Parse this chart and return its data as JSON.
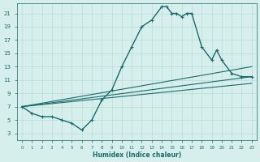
{
  "xlabel": "Humidex (Indice chaleur)",
  "bg_color": "#d6efec",
  "line_color": "#1a6b6b",
  "grid_color": "#b8dcd8",
  "xlim": [
    -0.5,
    23.5
  ],
  "ylim": [
    2,
    22.5
  ],
  "xticks": [
    0,
    1,
    2,
    3,
    4,
    5,
    6,
    7,
    8,
    9,
    10,
    11,
    12,
    13,
    14,
    15,
    16,
    17,
    18,
    19,
    20,
    21,
    22,
    23
  ],
  "yticks": [
    3,
    5,
    7,
    9,
    11,
    13,
    15,
    17,
    19,
    21
  ],
  "main_curve": [
    [
      0,
      7
    ],
    [
      1,
      6
    ],
    [
      2,
      5.5
    ],
    [
      3,
      5.5
    ],
    [
      4,
      5
    ],
    [
      5,
      4.5
    ],
    [
      6,
      3.5
    ],
    [
      7,
      5
    ],
    [
      8,
      8
    ],
    [
      9,
      9.5
    ],
    [
      10,
      13
    ],
    [
      11,
      16
    ],
    [
      12,
      19
    ],
    [
      13,
      20
    ],
    [
      14,
      22
    ],
    [
      14.5,
      22
    ],
    [
      15,
      21
    ],
    [
      15.5,
      21
    ],
    [
      16,
      20.5
    ],
    [
      16.5,
      21
    ],
    [
      17,
      21
    ],
    [
      18,
      16
    ],
    [
      19,
      14
    ],
    [
      19.5,
      15.5
    ],
    [
      20,
      14
    ],
    [
      21,
      12
    ],
    [
      22,
      11.5
    ],
    [
      23,
      11.5
    ]
  ],
  "linear_lines": [
    {
      "x": [
        0,
        23
      ],
      "y": [
        7,
        13
      ]
    },
    {
      "x": [
        0,
        23
      ],
      "y": [
        7,
        11.5
      ]
    },
    {
      "x": [
        0,
        23
      ],
      "y": [
        7,
        10.5
      ]
    }
  ]
}
